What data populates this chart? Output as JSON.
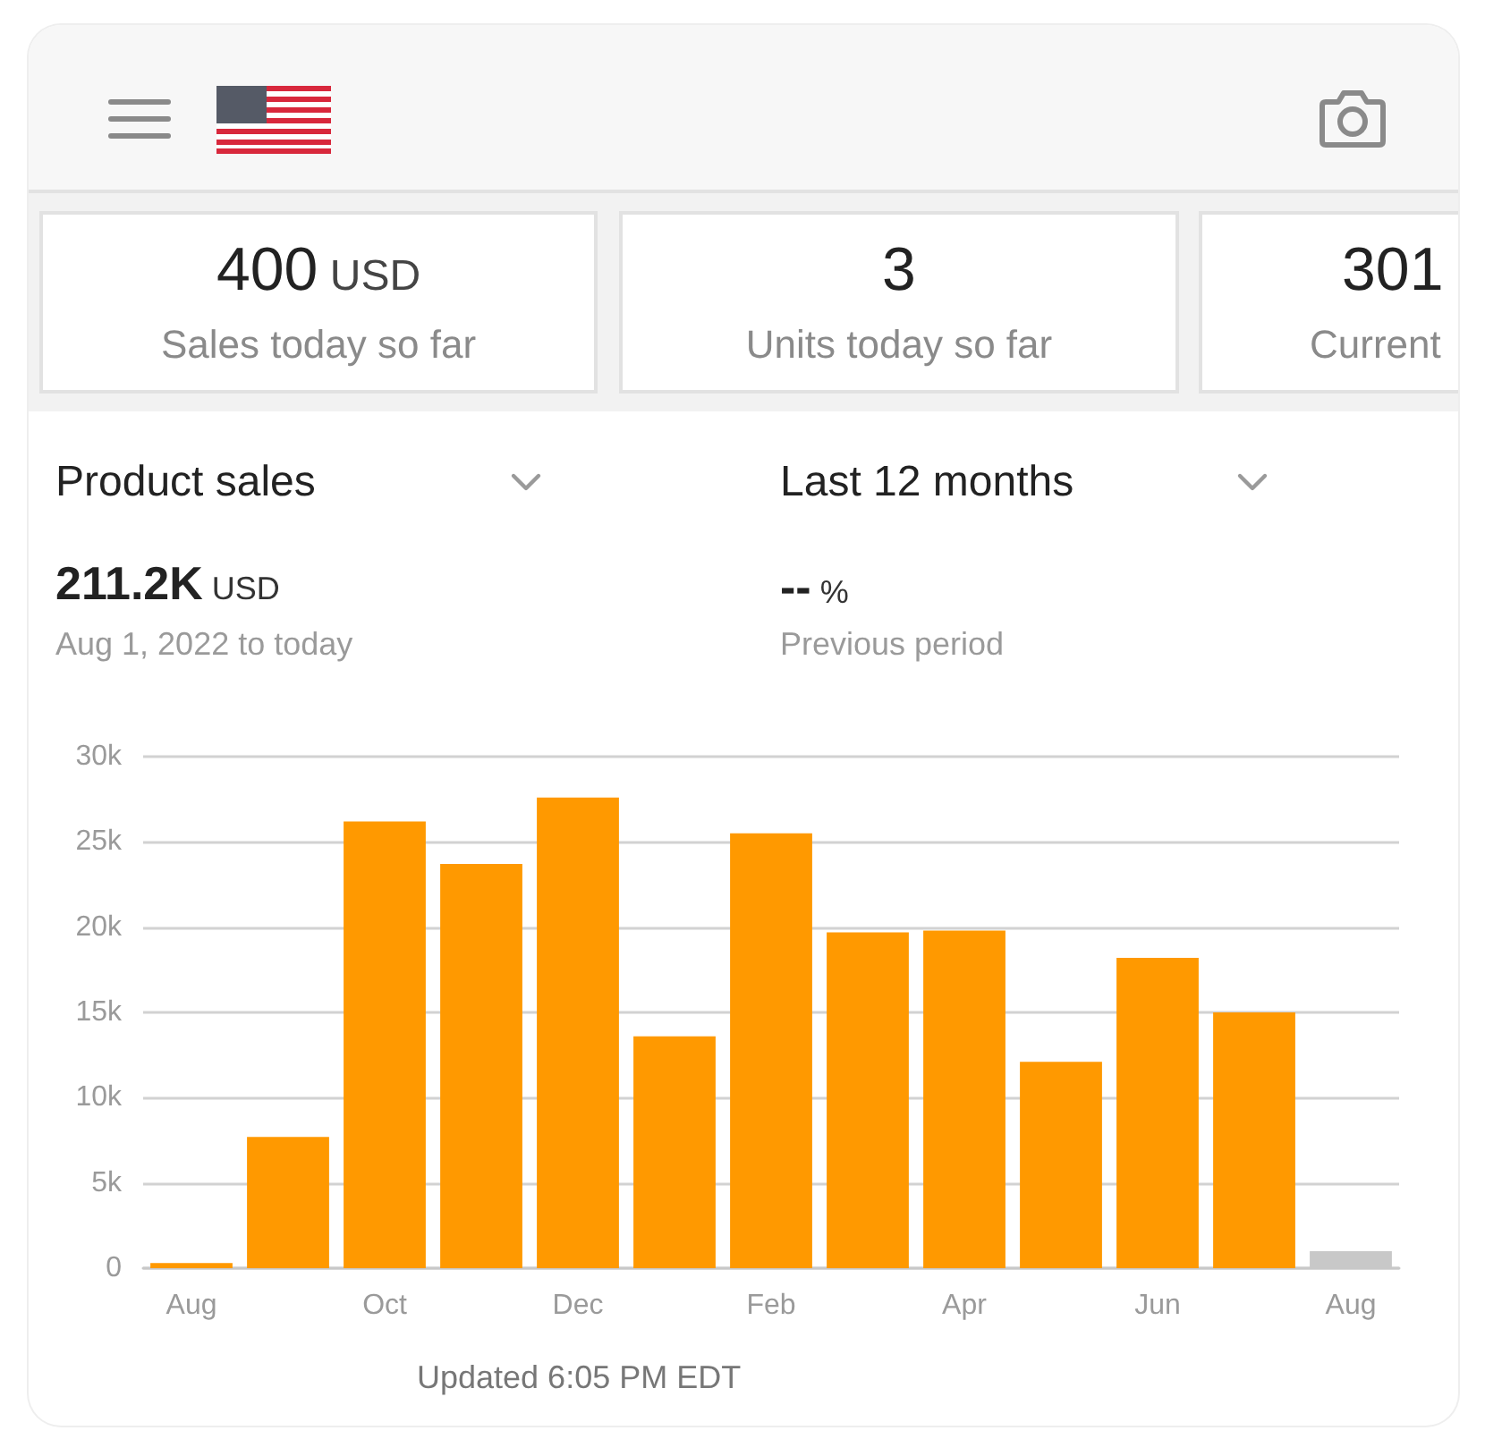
{
  "chart_data": {
    "type": "bar",
    "title": "Product sales",
    "subtitle": "Last 12 months",
    "categories": [
      "Aug",
      null,
      "Oct",
      null,
      "Dec",
      null,
      "Feb",
      null,
      "Apr",
      null,
      "Jun",
      null,
      "Aug"
    ],
    "values": [
      300,
      7700,
      26200,
      23700,
      27600,
      13600,
      25500,
      19700,
      19800,
      12100,
      18200,
      15000,
      1000
    ],
    "colors": [
      "#ff9900",
      "#ff9900",
      "#ff9900",
      "#ff9900",
      "#ff9900",
      "#ff9900",
      "#ff9900",
      "#ff9900",
      "#ff9900",
      "#ff9900",
      "#ff9900",
      "#ff9900",
      "#c8c8c8"
    ],
    "ylim": [
      0,
      30000
    ],
    "yticks": [
      0,
      {
        "value": 5000,
        "label": "5k"
      },
      {
        "value": 10000,
        "label": "10k"
      },
      {
        "value": 15000,
        "label": "15k"
      },
      {
        "value": 20000,
        "label": "20k"
      },
      {
        "value": 25000,
        "label": "25k"
      },
      {
        "value": 30000,
        "label": "30k"
      }
    ],
    "grid": "y",
    "annotations": [
      "400 USD",
      "Sales today so far",
      "3",
      "Units today so far",
      "301",
      "Current",
      "211.2K USD",
      "Aug 1, 2022 to today",
      "-- %",
      "Previous period",
      "Updated 6:05 PM EDT"
    ]
  }
}
